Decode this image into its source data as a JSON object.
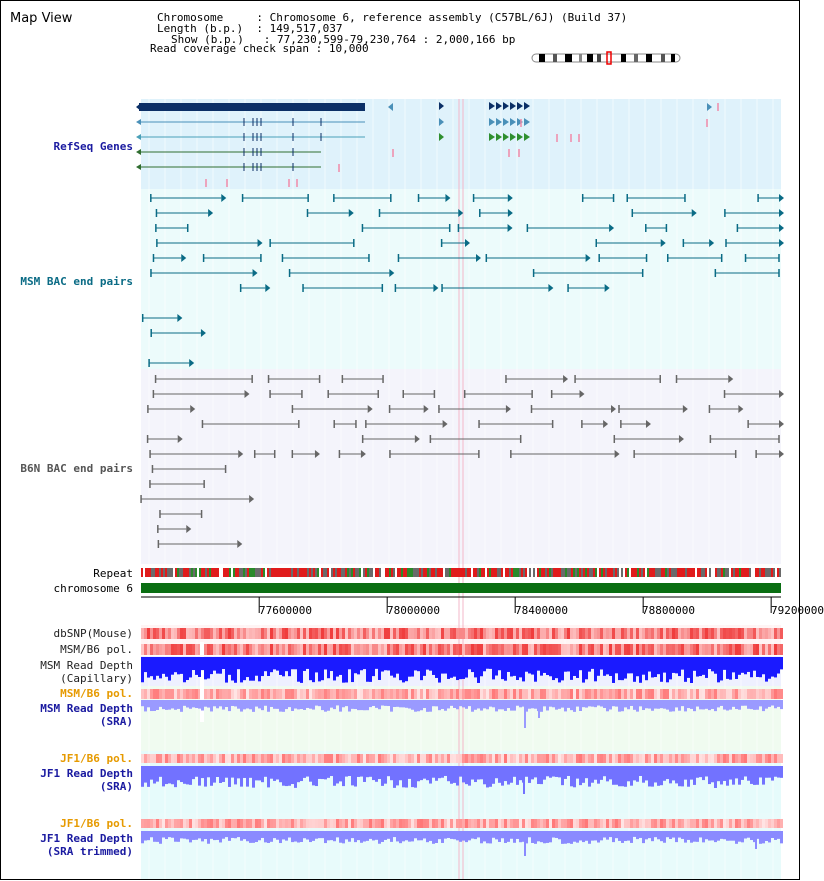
{
  "title": "Map View",
  "info": {
    "chromosome_label": "Chromosome",
    "chromosome": "Chromosome 6, reference assembly (C57BL/6J) (Build 37)",
    "length_label": "Length (b.p.)",
    "length": "149,517,037",
    "show_label": "Show (b.p.)",
    "show": "77,230,599-79,230,764 : 2,000,166 bp",
    "coverage_label": "Read coverage check span",
    "coverage": "10,000"
  },
  "tracks": {
    "refseq": "RefSeq Genes",
    "msm_bac": "MSM BAC end pairs",
    "b6n_bac": "B6N BAC end pairs",
    "repeat": "Repeat",
    "chromosome": "chromosome 6",
    "dbsnp": "dbSNP(Mouse)",
    "msm_b6_pol": "MSM/B6 pol.",
    "msm_read_depth_cap_1": "MSM Read Depth",
    "msm_read_depth_cap_2": "(Capillary)",
    "msm_b6_pol_2": "MSM/B6 pol.",
    "msm_read_depth_sra_1": "MSM Read Depth",
    "msm_read_depth_sra_2": "(SRA)",
    "jf1_b6_pol": "JF1/B6 pol.",
    "jf1_read_depth_sra_1": "JF1 Read Depth",
    "jf1_read_depth_sra_2": "(SRA)",
    "jf1_b6_pol_2": "JF1/B6 pol.",
    "jf1_read_depth_trim_1": "JF1 Read Depth",
    "jf1_read_depth_trim_2": "(SRA trimmed)"
  },
  "axis": {
    "ticks": [
      "77600000",
      "78000000",
      "78400000",
      "78800000",
      "79200000"
    ],
    "tick_values": [
      77600000,
      78000000,
      78400000,
      78800000,
      79200000
    ],
    "range": [
      77230599,
      79230764
    ]
  },
  "colors": {
    "refseq_bg": "#dff2fb",
    "msm_bg": "#ecfbfb",
    "b6n_bg": "#f4f4fb",
    "label_blue": "#1a1aa0",
    "label_teal": "#0a6b85",
    "label_orange": "#e69a00",
    "chrom_green": "#0a6e12",
    "depth_blue": "#1a1aff",
    "depth_light": "#7f7fff"
  }
}
